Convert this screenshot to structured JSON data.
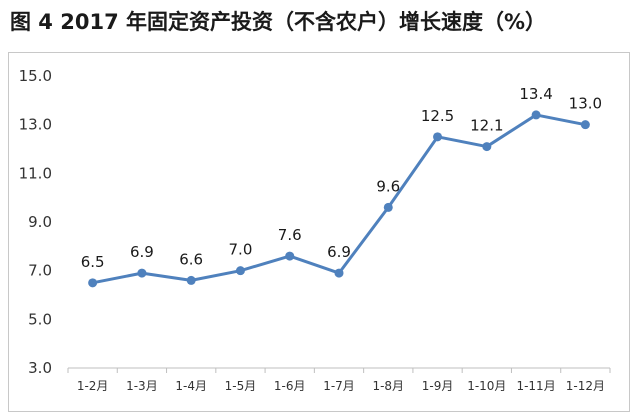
{
  "title": "图 4   2017 年固定资产投资（不含农户）增长速度（%）",
  "chart_data": {
    "type": "line",
    "title": "图 4   2017 年固定资产投资（不含农户）增长速度（%）",
    "categories": [
      "1-2月",
      "1-3月",
      "1-4月",
      "1-5月",
      "1-6月",
      "1-7月",
      "1-8月",
      "1-9月",
      "1-10月",
      "1-11月",
      "1-12月"
    ],
    "series": [
      {
        "values": [
          6.5,
          6.9,
          6.6,
          7.0,
          7.6,
          6.9,
          9.6,
          12.5,
          12.1,
          13.4,
          13.0
        ]
      }
    ],
    "data_labels": [
      "6.5",
      "6.9",
      "6.6",
      "7.0",
      "7.6",
      "6.9",
      "9.6",
      "12.5",
      "12.1",
      "13.4",
      "13.0"
    ],
    "yticks": [
      "3.0",
      "5.0",
      "7.0",
      "9.0",
      "11.0",
      "13.0",
      "15.0"
    ],
    "ylim": [
      3,
      15
    ],
    "grid": false,
    "line_color": "#4f81bd"
  }
}
